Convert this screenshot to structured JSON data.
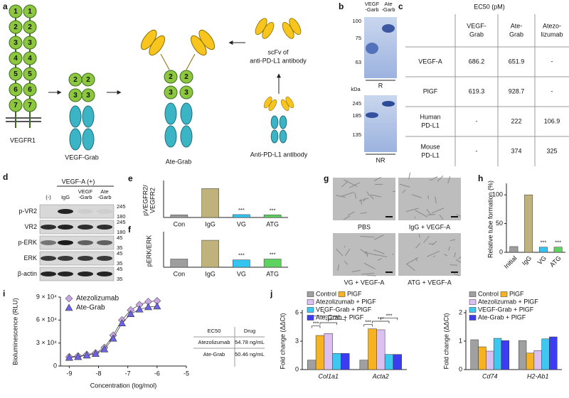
{
  "panel_labels": [
    "a",
    "b",
    "c",
    "d",
    "e",
    "f",
    "g",
    "h",
    "i",
    "j"
  ],
  "diagram": {
    "vegfr1_domains": [
      "1",
      "2",
      "3",
      "4",
      "5",
      "6",
      "7"
    ],
    "grab_domains": [
      "2",
      "3"
    ],
    "labels": {
      "vegfr1": "VEGFR1",
      "vegf_grab": "VEGF-Grab",
      "ate_grab": "Ate-Grab",
      "scfv": [
        "scFv of",
        "anti-PD-L1 antibody"
      ],
      "antibody": "Anti-PD-L1 antibody"
    }
  },
  "gel": {
    "lanes": [
      [
        "VEGF",
        "-Garb"
      ],
      [
        "Ate",
        "-Garb"
      ]
    ],
    "unit": "kDa",
    "reducing": {
      "markers": [
        "100",
        "75",
        "63"
      ],
      "label": "R"
    },
    "nonreducing": {
      "markers": [
        "245",
        "185",
        "135"
      ],
      "label": "NR"
    }
  },
  "ec50_table": {
    "title": "EC50 (pM)",
    "columns": [
      [
        "VEGF-",
        "Grab"
      ],
      [
        "Ate-",
        "Grab"
      ],
      [
        "Atezo-",
        "lizumab"
      ]
    ],
    "rows": [
      {
        "label": [
          "VEGF-A"
        ],
        "cells": [
          "686.2",
          "651.9",
          "-"
        ]
      },
      {
        "label": [
          "PlGF"
        ],
        "cells": [
          "619.3",
          "928.7",
          "-"
        ]
      },
      {
        "label": [
          "Human",
          "PD-L1"
        ],
        "cells": [
          "-",
          "222",
          "106.9"
        ]
      },
      {
        "label": [
          "Mouse",
          "PD-L1"
        ],
        "cells": [
          "-",
          "374",
          "325"
        ]
      }
    ]
  },
  "blot": {
    "condition": "VEGF-A (+)",
    "lanes": [
      [
        "(-)"
      ],
      [
        "IgG"
      ],
      [
        "VEGF",
        "-Garb"
      ],
      [
        "Ate",
        "-Garb"
      ]
    ],
    "rows": [
      {
        "name": "p-VR2",
        "markers": [
          "245",
          "180"
        ]
      },
      {
        "name": "VR2",
        "markers": [
          "245",
          "180"
        ]
      },
      {
        "name": "p-ERK",
        "markers": [
          "45",
          "35"
        ]
      },
      {
        "name": "ERK",
        "markers": [
          "45",
          "35"
        ]
      },
      {
        "name": "β-actin",
        "markers": [
          "45",
          "35"
        ]
      }
    ]
  },
  "micrographs": [
    "PBS",
    "IgG + VEGF-A",
    "VG + VEGF-A",
    "ATG + VEGF-A"
  ],
  "ec50_drug_table": {
    "header": [
      "EC50",
      "Drug"
    ],
    "rows": [
      [
        "Atezolizumab",
        "54.78 ng/mL"
      ],
      [
        "Ate-Grab",
        "50.46 ng/mL"
      ]
    ]
  },
  "chart_data": [
    {
      "type": "bar",
      "ylabel": [
        "pVEGFR2/",
        "VEGFR2"
      ],
      "categories": [
        "Con",
        "IgG",
        "VG",
        "ATG"
      ],
      "values": [
        1,
        11,
        1.1,
        1
      ],
      "colors": [
        "#9e9e9e",
        "#bfb27a",
        "#35c3ef",
        "#5fd35f"
      ],
      "ylim": [
        0,
        13
      ],
      "annotations": [
        "***",
        "***"
      ]
    },
    {
      "type": "bar",
      "ylabel": [
        "pERK/ERK"
      ],
      "categories": [
        "Con",
        "IgG",
        "VG",
        "ATG"
      ],
      "values": [
        1,
        3.3,
        0.9,
        1
      ],
      "colors": [
        "#9e9e9e",
        "#bfb27a",
        "#35c3ef",
        "#5fd35f"
      ],
      "ylim": [
        0,
        4
      ],
      "annotations": [
        "***",
        "***"
      ]
    },
    {
      "type": "bar",
      "ylabel": [
        "Relative tube formation (%)"
      ],
      "categories": [
        "Initial",
        "IgG",
        "VG",
        "ATG"
      ],
      "values": [
        10,
        100,
        9,
        9
      ],
      "colors": [
        "#9e9e9e",
        "#bfb27a",
        "#35c3ef",
        "#5fd35f"
      ],
      "ylim": [
        0,
        115
      ],
      "yticks": [
        0,
        50,
        100
      ],
      "annotations": [
        "***",
        "***"
      ]
    },
    {
      "type": "line",
      "xlabel": "Concentration (log/mol)",
      "ylabel": [
        "Bioluminescence (RLU)"
      ],
      "x": [
        -9,
        -8.7,
        -8.4,
        -8.1,
        -7.8,
        -7.5,
        -7.2,
        -6.9,
        -6.6,
        -6.3,
        -6.0
      ],
      "series": [
        {
          "name": "Atezolizumab",
          "color": "#c9a6e6",
          "marker": "diamond",
          "values": [
            12000,
            13000,
            15000,
            17000,
            24000,
            40000,
            60000,
            73000,
            80000,
            84000,
            85000
          ]
        },
        {
          "name": "Ate-Grab",
          "color": "#6c63e8",
          "marker": "triangle",
          "values": [
            11000,
            12000,
            14000,
            16000,
            22000,
            36000,
            56000,
            68000,
            74000,
            77000,
            78000
          ]
        }
      ],
      "xlim": [
        -9.3,
        -5
      ],
      "xticks": [
        -9,
        -8,
        -7,
        -6,
        -5
      ],
      "ylim": [
        0,
        90000
      ],
      "yticks": [
        0,
        {
          "value": 30000,
          "label": "3 × 10⁴"
        },
        {
          "value": 60000,
          "label": "6 × 10⁴"
        },
        {
          "value": 90000,
          "label": "9 × 10⁴"
        }
      ]
    },
    {
      "type": "bar",
      "ylabel": [
        "Fold change (ΔΔCt)"
      ],
      "categories": [
        "Col1a1",
        "Acta2"
      ],
      "series": [
        {
          "name": "Control",
          "color": "#a0a0a0",
          "values": [
            1,
            1
          ]
        },
        {
          "name": "PlGF",
          "color": "#f5b323",
          "values": [
            3.6,
            4.3
          ]
        },
        {
          "name": "Atezolizumab + PlGF",
          "color": "#dcc0f2",
          "values": [
            3.8,
            4.2
          ]
        },
        {
          "name": "VEGF-Grab + PlGF",
          "color": "#3cc8f0",
          "values": [
            1.7,
            1.6
          ]
        },
        {
          "name": "Ate-Grab + PlGF",
          "color": "#3c3cf0",
          "values": [
            1.7,
            1.6
          ]
        }
      ],
      "ylim": [
        0,
        6
      ],
      "yticks": [
        0,
        3,
        6
      ],
      "annotations": [
        "***",
        "***",
        "***",
        "*",
        "***",
        "***",
        "***"
      ]
    },
    {
      "type": "bar",
      "ylabel": [
        "Fold change (ΔΔCt)"
      ],
      "categories": [
        "Cd74",
        "H2-Ab1"
      ],
      "series": [
        {
          "name": "Control",
          "color": "#a0a0a0",
          "values": [
            1.05,
            1.02
          ]
        },
        {
          "name": "PlGF",
          "color": "#f5b323",
          "values": [
            0.8,
            0.58
          ]
        },
        {
          "name": "Atezolizumab + PlGF",
          "color": "#dcc0f2",
          "values": [
            0.65,
            0.67
          ]
        },
        {
          "name": "VEGF-Grab + PlGF",
          "color": "#3cc8f0",
          "values": [
            1.1,
            1.08
          ]
        },
        {
          "name": "Ate-Grab + PlGF",
          "color": "#3c3cf0",
          "values": [
            1.02,
            1.15
          ]
        }
      ],
      "ylim": [
        0,
        2
      ],
      "yticks": [
        0,
        1,
        2
      ]
    }
  ]
}
